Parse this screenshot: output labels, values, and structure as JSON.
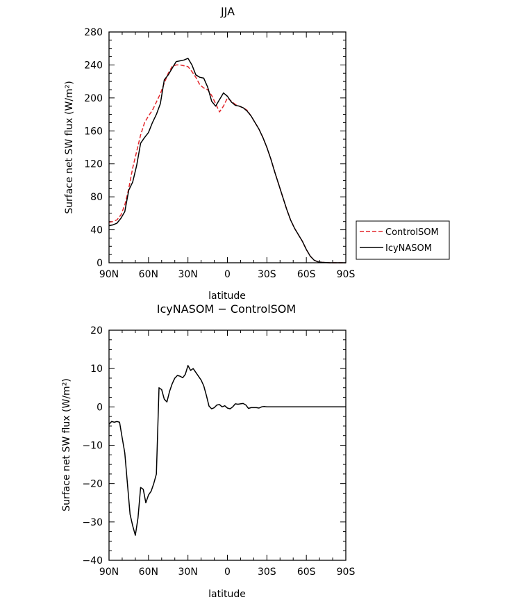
{
  "chart_data": [
    {
      "type": "line",
      "title": "JJA",
      "xlabel": "latitude",
      "ylabel": "Surface net SW flux (W/m²)",
      "xlim": [
        90,
        -90
      ],
      "ylim": [
        0,
        280
      ],
      "x_ticks": [
        90,
        60,
        30,
        0,
        -30,
        -60,
        -90
      ],
      "x_tick_labels": [
        "90N",
        "60N",
        "30N",
        "0",
        "30S",
        "60S",
        "90S"
      ],
      "y_ticks": [
        0,
        40,
        80,
        120,
        160,
        200,
        240,
        280
      ],
      "y_tick_labels": [
        "0",
        "40",
        "80",
        "120",
        "160",
        "200",
        "240",
        "280"
      ],
      "legend_position": "right",
      "series": [
        {
          "name": "ControlSOM",
          "color": "#e3262b",
          "dash": "dashed",
          "points": [
            [
              90,
              49
            ],
            [
              87,
              50
            ],
            [
              84,
              52
            ],
            [
              81,
              58
            ],
            [
              78,
              70
            ],
            [
              75,
              90
            ],
            [
              72,
              115
            ],
            [
              69,
              135
            ],
            [
              66,
              155
            ],
            [
              63,
              170
            ],
            [
              60,
              178
            ],
            [
              57,
              185
            ],
            [
              54,
              195
            ],
            [
              51,
              205
            ],
            [
              48,
              218
            ],
            [
              45,
              230
            ],
            [
              42,
              238
            ],
            [
              39,
              240
            ],
            [
              36,
              240
            ],
            [
              33,
              239
            ],
            [
              30,
              238
            ],
            [
              27,
              232
            ],
            [
              24,
              225
            ],
            [
              21,
              216
            ],
            [
              18,
              212
            ],
            [
              15,
              210
            ],
            [
              12,
              203
            ],
            [
              9,
              193
            ],
            [
              6,
              183
            ],
            [
              3,
              190
            ],
            [
              0,
              200
            ],
            [
              -3,
              196
            ],
            [
              -6,
              192
            ],
            [
              -9,
              190
            ],
            [
              -12,
              188
            ],
            [
              -15,
              185
            ],
            [
              -18,
              178
            ],
            [
              -21,
              170
            ],
            [
              -24,
              162
            ],
            [
              -27,
              152
            ],
            [
              -30,
              140
            ],
            [
              -33,
              126
            ],
            [
              -36,
              110
            ],
            [
              -39,
              95
            ],
            [
              -42,
              80
            ],
            [
              -45,
              65
            ],
            [
              -48,
              52
            ],
            [
              -51,
              42
            ],
            [
              -54,
              34
            ],
            [
              -57,
              26
            ],
            [
              -60,
              16
            ],
            [
              -63,
              8
            ],
            [
              -66,
              3
            ],
            [
              -69,
              1
            ],
            [
              -72,
              0.5
            ],
            [
              -78,
              0
            ],
            [
              -90,
              0
            ]
          ]
        },
        {
          "name": "IcyNASOM",
          "color": "#000000",
          "dash": "solid",
          "points": [
            [
              90,
              45
            ],
            [
              87,
              46
            ],
            [
              84,
              48
            ],
            [
              81,
              54
            ],
            [
              78,
              62
            ],
            [
              75,
              88
            ],
            [
              72,
              98
            ],
            [
              69,
              118
            ],
            [
              66,
              145
            ],
            [
              63,
              152
            ],
            [
              60,
              158
            ],
            [
              57,
              170
            ],
            [
              54,
              180
            ],
            [
              51,
              193
            ],
            [
              48,
              222
            ],
            [
              45,
              228
            ],
            [
              42,
              236
            ],
            [
              39,
              244
            ],
            [
              36,
              245
            ],
            [
              33,
              246
            ],
            [
              30,
              248
            ],
            [
              27,
              240
            ],
            [
              24,
              228
            ],
            [
              21,
              225
            ],
            [
              18,
              224
            ],
            [
              15,
              213
            ],
            [
              12,
              196
            ],
            [
              9,
              190
            ],
            [
              6,
              198
            ],
            [
              3,
              206
            ],
            [
              0,
              202
            ],
            [
              -3,
              195
            ],
            [
              -6,
              191
            ],
            [
              -9,
              190
            ],
            [
              -12,
              188
            ],
            [
              -15,
              184
            ],
            [
              -18,
              178
            ],
            [
              -21,
              170
            ],
            [
              -24,
              162
            ],
            [
              -27,
              152
            ],
            [
              -30,
              140
            ],
            [
              -33,
              126
            ],
            [
              -36,
              110
            ],
            [
              -39,
              95
            ],
            [
              -42,
              80
            ],
            [
              -45,
              65
            ],
            [
              -48,
              52
            ],
            [
              -51,
              42
            ],
            [
              -54,
              34
            ],
            [
              -57,
              26
            ],
            [
              -60,
              16
            ],
            [
              -63,
              8
            ],
            [
              -66,
              3
            ],
            [
              -69,
              1
            ],
            [
              -72,
              0.5
            ],
            [
              -78,
              0
            ],
            [
              -90,
              0
            ]
          ]
        }
      ]
    },
    {
      "type": "line",
      "title": "IcyNASOM − ControlSOM",
      "xlabel": "latitude",
      "ylabel": "Surface net SW flux (W/m²)",
      "xlim": [
        90,
        -90
      ],
      "ylim": [
        -40,
        20
      ],
      "x_ticks": [
        90,
        60,
        30,
        0,
        -30,
        -60,
        -90
      ],
      "x_tick_labels": [
        "90N",
        "60N",
        "30N",
        "0",
        "30S",
        "60S",
        "90S"
      ],
      "y_ticks": [
        -40,
        -30,
        -20,
        -10,
        0,
        10,
        20
      ],
      "y_tick_labels": [
        "−40",
        "−30",
        "−20",
        "−10",
        "0",
        "10",
        "20"
      ],
      "series": [
        {
          "color": "#000000",
          "dash": "solid",
          "points": [
            [
              90,
              -4.5
            ],
            [
              88,
              -3.8
            ],
            [
              86,
              -4
            ],
            [
              84,
              -3.8
            ],
            [
              82,
              -4
            ],
            [
              80,
              -8
            ],
            [
              78,
              -12
            ],
            [
              76,
              -20
            ],
            [
              74,
              -28
            ],
            [
              72,
              -31
            ],
            [
              70,
              -33.5
            ],
            [
              68,
              -29
            ],
            [
              66,
              -21
            ],
            [
              64,
              -21.5
            ],
            [
              62,
              -25
            ],
            [
              60,
              -23
            ],
            [
              58,
              -22
            ],
            [
              56,
              -20
            ],
            [
              54,
              -17.5
            ],
            [
              52,
              5
            ],
            [
              50,
              4.5
            ],
            [
              48,
              2
            ],
            [
              46,
              1.3
            ],
            [
              44,
              4
            ],
            [
              42,
              6
            ],
            [
              40,
              7.5
            ],
            [
              38,
              8.2
            ],
            [
              36,
              8
            ],
            [
              34,
              7.6
            ],
            [
              32,
              8.5
            ],
            [
              30,
              10.8
            ],
            [
              28,
              9.5
            ],
            [
              26,
              10
            ],
            [
              24,
              9
            ],
            [
              22,
              8
            ],
            [
              20,
              7
            ],
            [
              18,
              5.5
            ],
            [
              16,
              3
            ],
            [
              14,
              0.2
            ],
            [
              12,
              -0.5
            ],
            [
              10,
              -0.2
            ],
            [
              8,
              0.5
            ],
            [
              6,
              0.6
            ],
            [
              4,
              0
            ],
            [
              2,
              0.3
            ],
            [
              0,
              -0.3
            ],
            [
              -2,
              -0.5
            ],
            [
              -4,
              0
            ],
            [
              -6,
              0.8
            ],
            [
              -8,
              0.7
            ],
            [
              -10,
              0.8
            ],
            [
              -12,
              0.9
            ],
            [
              -14,
              0.5
            ],
            [
              -16,
              -0.4
            ],
            [
              -18,
              -0.2
            ],
            [
              -20,
              -0.2
            ],
            [
              -22,
              -0.2
            ],
            [
              -24,
              -0.3
            ],
            [
              -26,
              0
            ],
            [
              -28,
              0.1
            ],
            [
              -30,
              0
            ],
            [
              -35,
              0
            ],
            [
              -40,
              0
            ],
            [
              -60,
              0
            ],
            [
              -90,
              0
            ]
          ]
        }
      ]
    }
  ]
}
